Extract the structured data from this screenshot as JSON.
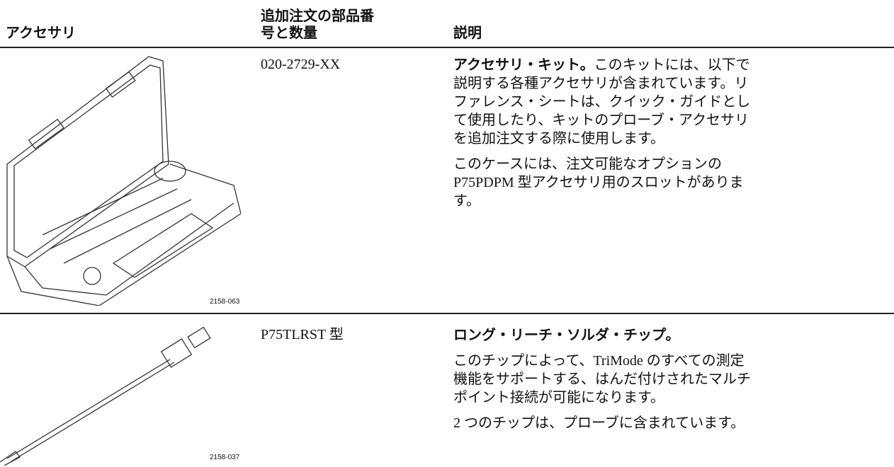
{
  "header": {
    "columns": [
      "アクセサリ",
      "追加注文の部品番号と数量",
      "説明"
    ]
  },
  "rows": [
    {
      "figure_label": "2158-063",
      "part": "020-2729-XX",
      "lead": "アクセサリ・キット。",
      "paragraphs": [
        "このキットには、以下で説明する各種アクセサリが含まれています。リファレンス・シートは、クイック・ガイドとして使用したり、キットのプローブ・アクセサリを追加注文する際に使用します。",
        "このケースには、注文可能なオプションの P75PDPM 型アクセサリ用のスロットがあります。"
      ]
    },
    {
      "figure_label": "2158-037",
      "part": "P75TLRST 型",
      "lead": "ロング・リーチ・ソルダ・チップ。",
      "paragraphs": [
        "このチップによって、TriMode のすべての測定機能をサポートする、はんだ付けされたマルチポイント接続が可能になります。",
        "2 つのチップは、プローブに含まれています。"
      ]
    }
  ]
}
